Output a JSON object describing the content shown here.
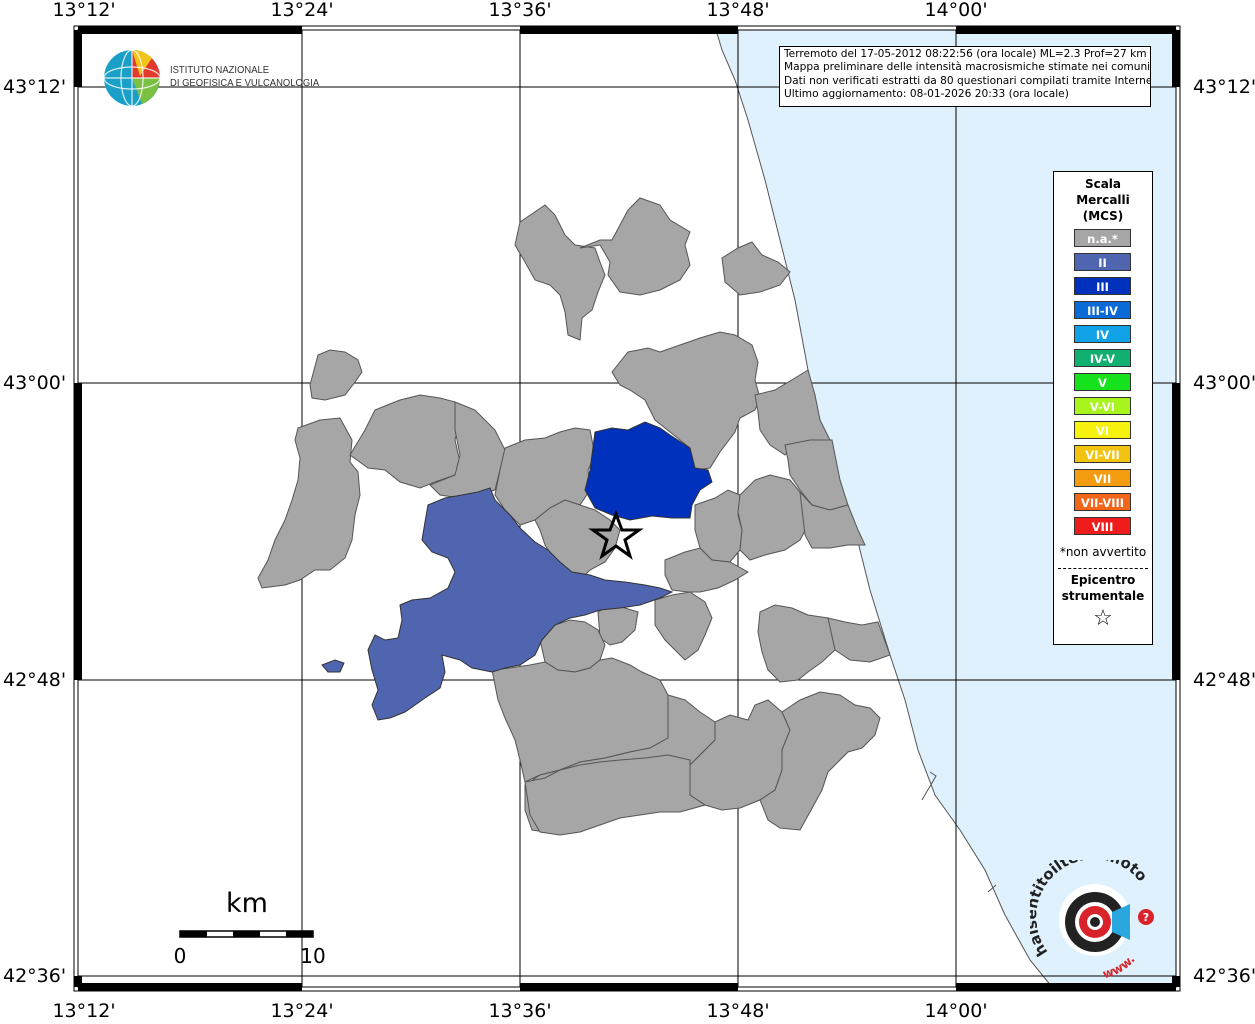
{
  "map": {
    "lon_ticks": [
      "13°12'",
      "13°24'",
      "13°36'",
      "13°48'",
      "14°00'"
    ],
    "lat_ticks": [
      "43°12'",
      "43°00'",
      "42°48'",
      "42°36'"
    ],
    "colors": {
      "land": "#ffffff",
      "sea": "#dff1fd",
      "municipality_na": "#a6a6a6",
      "intensity_II": "#5065b0",
      "intensity_III": "#0031bd",
      "border": "#555555"
    }
  },
  "info": {
    "line1": "Terremoto del 17-05-2012 08:22:56 (ora locale) ML=2.3 Prof=27 km",
    "line2": "Mappa preliminare delle intensità macrosismiche stimate nei comuni",
    "line3": "Dati non verificati estratti da 80 questionari compilati tramite Internet.",
    "line4": "Ultimo aggiornamento: 08-01-2026 20:33 (ora locale)"
  },
  "logo": {
    "line1": "ISTITUTO NAZIONALE",
    "line2": "DI GEOFISICA E VULCANOLOGIA"
  },
  "legend": {
    "title1": "Scala",
    "title2": "Mercalli",
    "title3": "(MCS)",
    "items": [
      {
        "label": "n.a.*",
        "color": "#a6a6a6"
      },
      {
        "label": "II",
        "color": "#5065b0"
      },
      {
        "label": "III",
        "color": "#0031bd"
      },
      {
        "label": "III-IV",
        "color": "#0a6bd6"
      },
      {
        "label": "IV",
        "color": "#0fa2e6"
      },
      {
        "label": "IV-V",
        "color": "#11b070"
      },
      {
        "label": "V",
        "color": "#15e21c"
      },
      {
        "label": "V-VI",
        "color": "#a8f51d"
      },
      {
        "label": "VI",
        "color": "#f7f20d"
      },
      {
        "label": "VI-VII",
        "color": "#f3c40f"
      },
      {
        "label": "VII",
        "color": "#f39c10"
      },
      {
        "label": "VII-VIII",
        "color": "#f2661a"
      },
      {
        "label": "VIII",
        "color": "#ef1c1c"
      }
    ],
    "note": "*non avvertito",
    "epi1": "Epicentro",
    "epi2": "strumentale",
    "star": "☆"
  },
  "scalebar": {
    "unit": "km",
    "min": "0",
    "max": "10"
  },
  "hsn": {
    "text": "haisentitoilterremoto.it",
    "prefix": "www.",
    "question": "?"
  }
}
